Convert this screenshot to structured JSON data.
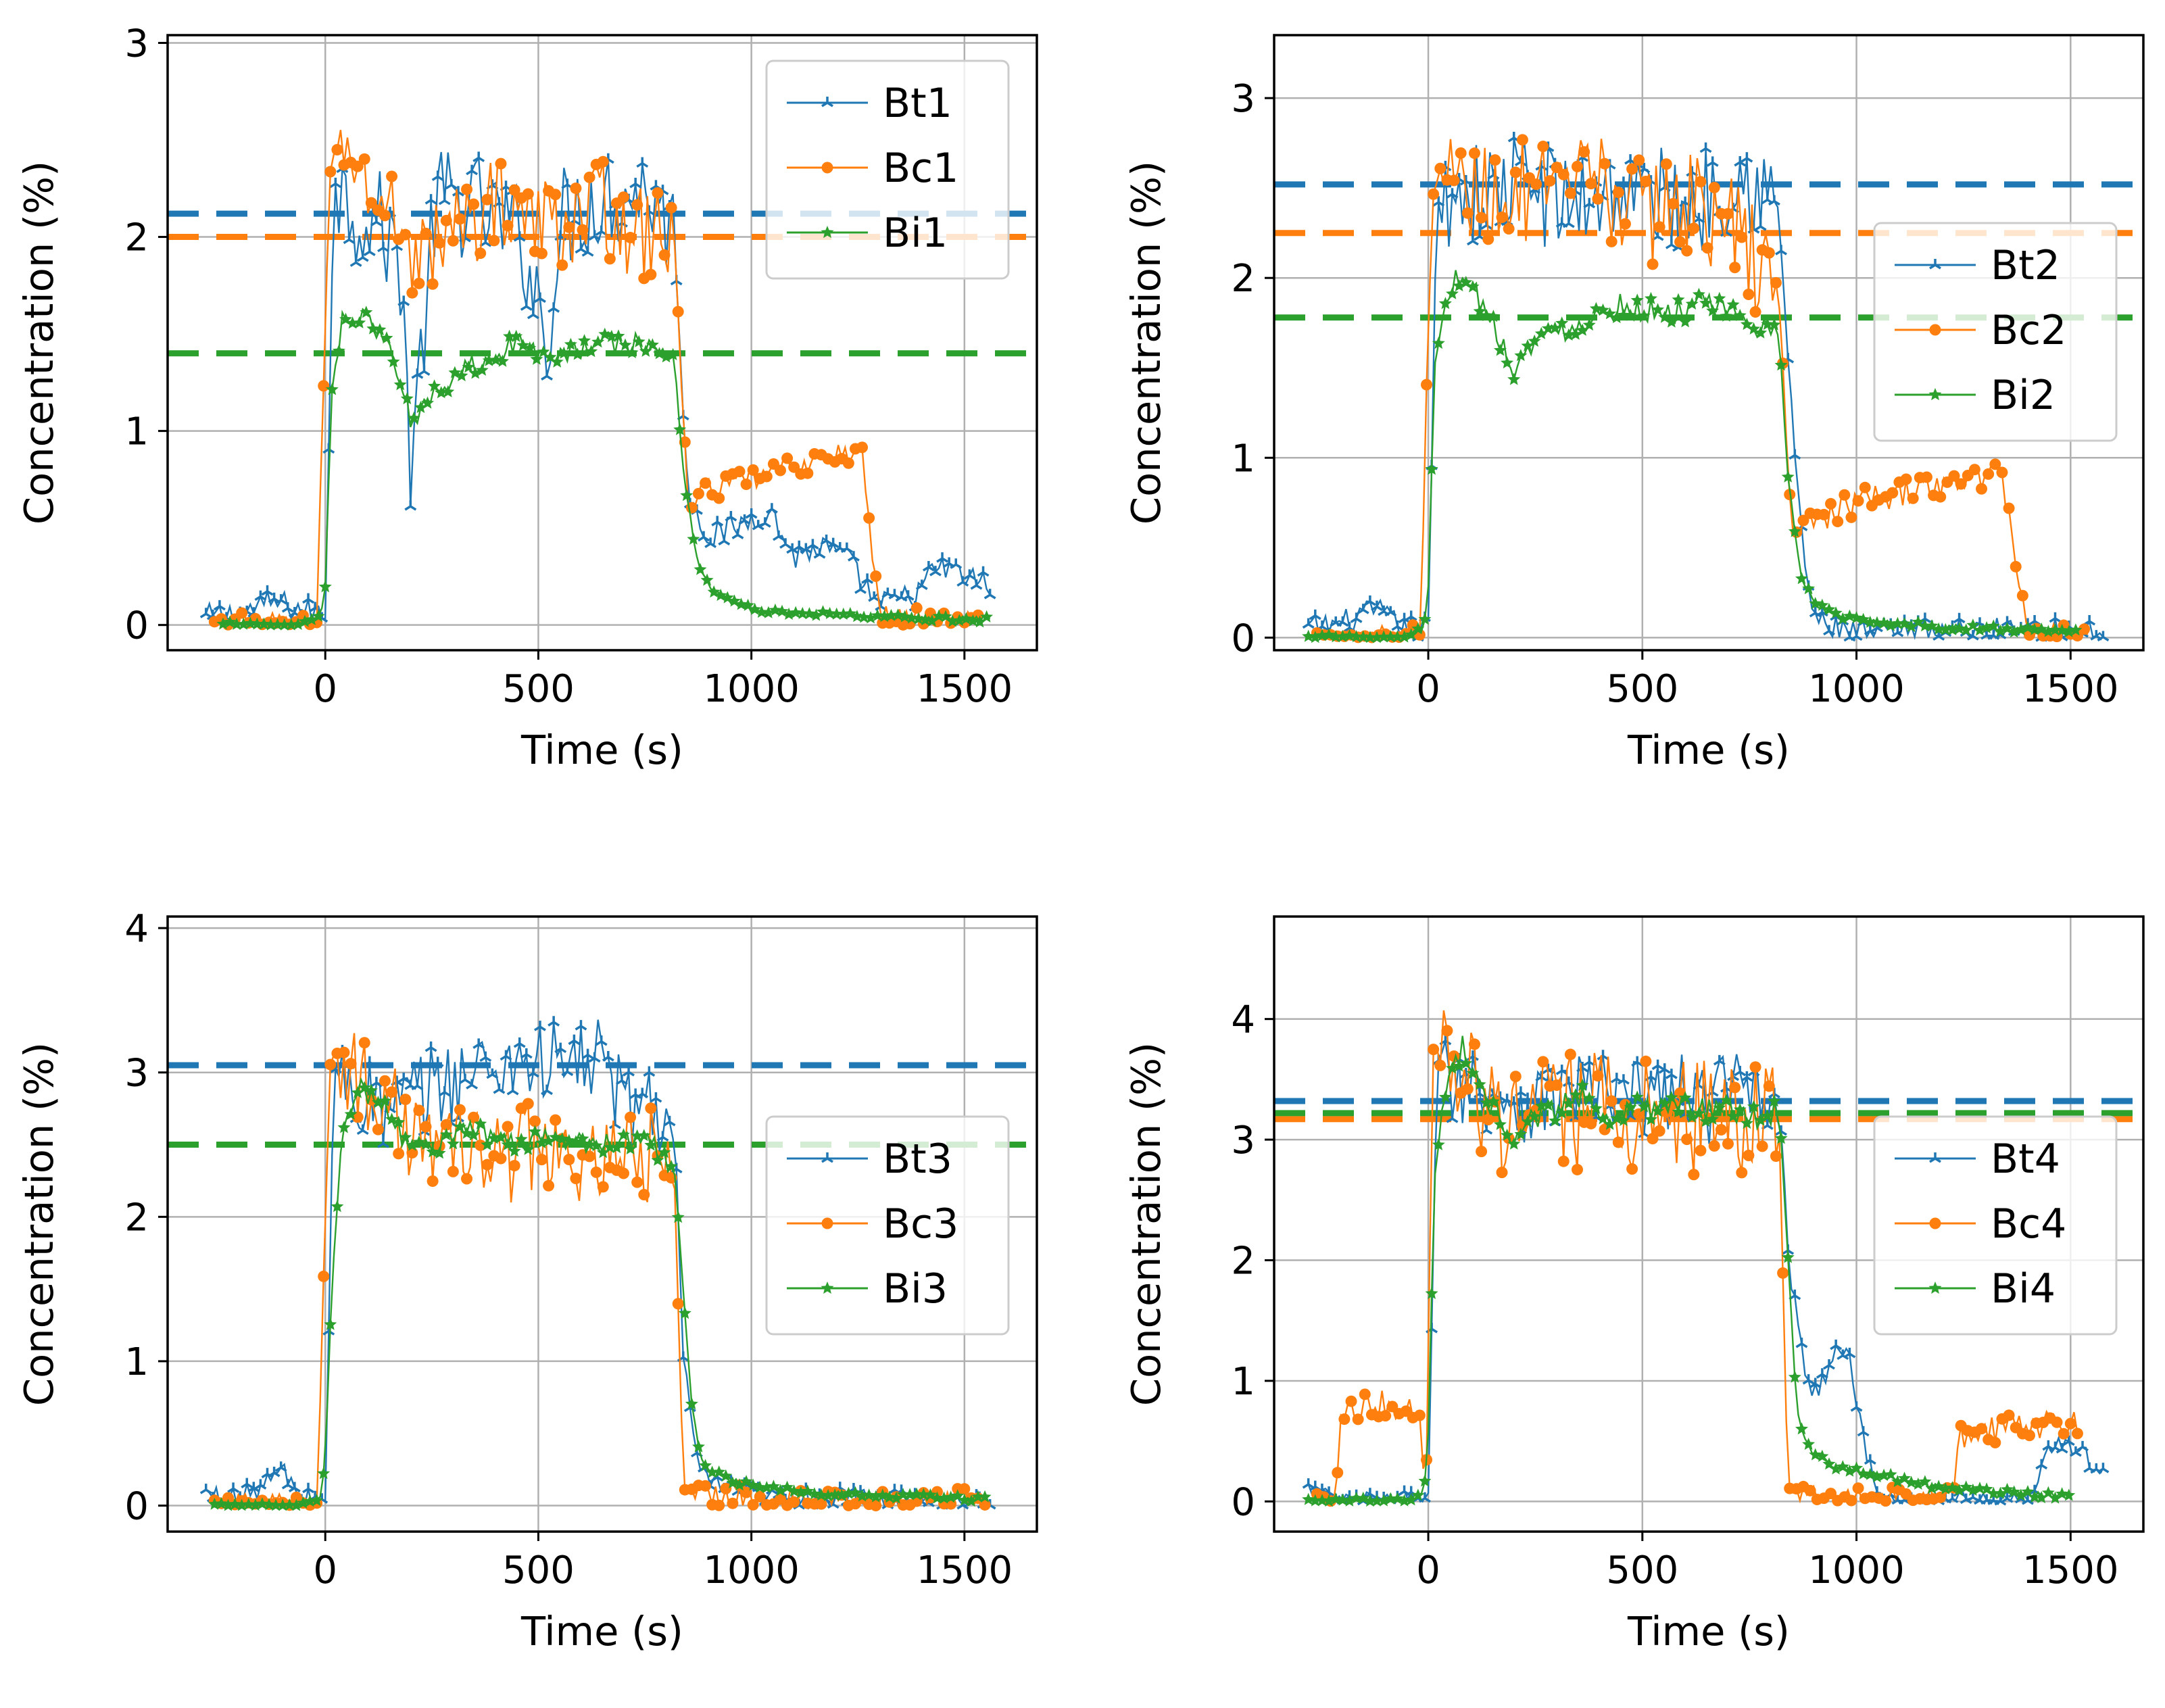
{
  "colors": {
    "Bt": "#1f77b4",
    "Bc": "#ff7f0e",
    "Bi": "#2ca02c"
  },
  "chart_data": [
    {
      "type": "line",
      "xlabel": "Time (s)",
      "ylabel": "Concentration (%)",
      "xlim": [
        -370,
        1670
      ],
      "ylim": [
        -0.13,
        3.04
      ],
      "xticks": [
        0,
        500,
        1000,
        1500
      ],
      "xtick_labels": [
        "0",
        "500",
        "1000",
        "1500"
      ],
      "yticks": [
        0,
        1,
        2,
        3
      ],
      "ytick_labels": [
        "0",
        "1",
        "2",
        "3"
      ],
      "grid": true,
      "legend_position": "top-right",
      "series": [
        {
          "name": "Bt1",
          "color": "#1f77b4",
          "marker": "tri",
          "noise": 0.28,
          "reference": 2.12,
          "x": [
            -280,
            -200,
            -120,
            -60,
            0,
            20,
            60,
            120,
            180,
            200,
            260,
            360,
            460,
            520,
            560,
            640,
            760,
            820,
            850,
            900,
            960,
            1000,
            1040,
            1100,
            1160,
            1220,
            1300,
            1380,
            1440,
            1500,
            1560
          ],
          "y": [
            0.04,
            0.06,
            0.12,
            0.08,
            0.05,
            2.3,
            2.15,
            2.1,
            1.85,
            0.8,
            2.2,
            2.15,
            2.0,
            1.5,
            2.1,
            2.2,
            2.25,
            2.0,
            0.7,
            0.45,
            0.5,
            0.55,
            0.6,
            0.35,
            0.4,
            0.35,
            0.1,
            0.15,
            0.3,
            0.25,
            0.2
          ]
        },
        {
          "name": "Bc1",
          "color": "#ff7f0e",
          "marker": "circle",
          "noise": 0.25,
          "reference": 2.0,
          "x": [
            -260,
            -200,
            -100,
            -20,
            10,
            40,
            100,
            160,
            220,
            260,
            340,
            420,
            500,
            580,
            660,
            740,
            800,
            820,
            850,
            900,
            950,
            1000,
            1040,
            1100,
            1160,
            1220,
            1260,
            1300,
            1400,
            1500,
            1540
          ],
          "y": [
            0.0,
            0.0,
            0.0,
            0.0,
            2.3,
            2.5,
            2.25,
            2.1,
            1.9,
            1.95,
            2.1,
            2.2,
            2.05,
            2.1,
            2.15,
            2.0,
            2.05,
            1.9,
            0.65,
            0.7,
            0.72,
            0.75,
            0.78,
            0.82,
            0.85,
            0.88,
            0.9,
            0.05,
            0.03,
            0.02,
            0.02
          ]
        },
        {
          "name": "Bi1",
          "color": "#2ca02c",
          "marker": "star",
          "noise": 0.06,
          "reference": 1.4,
          "x": [
            -240,
            -180,
            -120,
            -60,
            -10,
            0,
            15,
            40,
            80,
            150,
            200,
            250,
            350,
            450,
            550,
            650,
            760,
            820,
            840,
            870,
            900,
            950,
            1000,
            1100,
            1200,
            1300,
            1400,
            1500,
            1560
          ],
          "y": [
            0.0,
            0.0,
            0.0,
            0.0,
            0.05,
            0.2,
            1.2,
            1.6,
            1.6,
            1.45,
            1.05,
            1.2,
            1.35,
            1.45,
            1.4,
            1.45,
            1.45,
            1.35,
            0.8,
            0.35,
            0.2,
            0.12,
            0.08,
            0.06,
            0.05,
            0.04,
            0.03,
            0.03,
            0.03
          ]
        }
      ]
    },
    {
      "type": "line",
      "xlabel": "Time (s)",
      "ylabel": "Concentration (%)",
      "xlim": [
        -360,
        1670
      ],
      "ylim": [
        -0.07,
        3.35
      ],
      "xticks": [
        0,
        500,
        1000,
        1500
      ],
      "xtick_labels": [
        "0",
        "500",
        "1000",
        "1500"
      ],
      "yticks": [
        0,
        1,
        2,
        3
      ],
      "ytick_labels": [
        "0",
        "1",
        "2",
        "3"
      ],
      "grid": true,
      "legend_position": "center-right",
      "series": [
        {
          "name": "Bt2",
          "color": "#1f77b4",
          "marker": "tri",
          "noise": 0.3,
          "reference": 2.52,
          "x": [
            -280,
            -200,
            -120,
            -60,
            0,
            20,
            60,
            140,
            220,
            320,
            420,
            520,
            620,
            720,
            780,
            820,
            850,
            880,
            900,
            950,
            1000,
            1100,
            1200,
            1300,
            1400,
            1500,
            1580
          ],
          "y": [
            0.05,
            0.08,
            0.15,
            0.05,
            0.05,
            2.4,
            2.5,
            2.45,
            2.55,
            2.4,
            2.5,
            2.45,
            2.4,
            2.6,
            2.5,
            2.3,
            1.2,
            0.4,
            0.1,
            0.05,
            0.02,
            0.02,
            0.05,
            0.02,
            0.08,
            0.02,
            0.02
          ]
        },
        {
          "name": "Bc2",
          "color": "#ff7f0e",
          "marker": "circle",
          "noise": 0.3,
          "reference": 2.25,
          "x": [
            -260,
            -200,
            -120,
            -20,
            10,
            40,
            100,
            200,
            300,
            400,
            500,
            600,
            700,
            800,
            820,
            850,
            900,
            950,
            1000,
            1100,
            1200,
            1250,
            1300,
            1340,
            1400,
            1450,
            1540
          ],
          "y": [
            0.0,
            0.0,
            0.0,
            0.0,
            2.5,
            2.6,
            2.45,
            2.5,
            2.4,
            2.55,
            2.35,
            2.45,
            2.3,
            2.0,
            1.8,
            0.6,
            0.65,
            0.7,
            0.75,
            0.8,
            0.85,
            0.88,
            0.9,
            0.92,
            0.02,
            0.02,
            0.02
          ]
        },
        {
          "name": "Bi2",
          "color": "#2ca02c",
          "marker": "star",
          "noise": 0.07,
          "reference": 1.78,
          "x": [
            -280,
            -200,
            -120,
            -60,
            -10,
            0,
            15,
            40,
            80,
            150,
            200,
            250,
            350,
            450,
            550,
            650,
            760,
            820,
            840,
            870,
            900,
            950,
            1000,
            1100,
            1200,
            1300,
            1400,
            1520
          ],
          "y": [
            0.0,
            0.0,
            0.0,
            0.0,
            0.05,
            0.3,
            1.5,
            1.9,
            2.05,
            1.75,
            1.5,
            1.65,
            1.75,
            1.85,
            1.8,
            1.85,
            1.75,
            1.65,
            0.9,
            0.35,
            0.2,
            0.12,
            0.1,
            0.08,
            0.06,
            0.05,
            0.04,
            0.03
          ]
        }
      ]
    },
    {
      "type": "line",
      "xlabel": "Time (s)",
      "ylabel": "Concentration (%)",
      "xlim": [
        -370,
        1670
      ],
      "ylim": [
        -0.18,
        4.08
      ],
      "xticks": [
        0,
        500,
        1000,
        1500
      ],
      "xtick_labels": [
        "0",
        "500",
        "1000",
        "1500"
      ],
      "yticks": [
        0,
        1,
        2,
        3,
        4
      ],
      "ytick_labels": [
        "0",
        "1",
        "2",
        "3",
        "4"
      ],
      "grid": true,
      "legend_position": "center-right",
      "series": [
        {
          "name": "Bt3",
          "color": "#1f77b4",
          "marker": "tri",
          "noise": 0.3,
          "reference": 3.05,
          "x": [
            -280,
            -200,
            -140,
            -100,
            -60,
            0,
            20,
            60,
            150,
            250,
            350,
            450,
            550,
            650,
            700,
            760,
            820,
            840,
            880,
            950,
            1000,
            1100,
            1200,
            1300,
            1400,
            1500,
            1560
          ],
          "y": [
            0.08,
            0.05,
            0.15,
            0.25,
            0.05,
            0.05,
            3.0,
            2.9,
            2.7,
            2.9,
            3.0,
            3.1,
            3.05,
            3.1,
            2.75,
            2.8,
            2.6,
            1.0,
            0.2,
            0.1,
            0.08,
            0.06,
            0.05,
            0.05,
            0.04,
            0.04,
            0.04
          ]
        },
        {
          "name": "Bc3",
          "color": "#ff7f0e",
          "marker": "circle",
          "noise": 0.35,
          "reference": 2.5,
          "x": [
            -260,
            -200,
            -100,
            -20,
            10,
            40,
            100,
            200,
            300,
            400,
            500,
            600,
            700,
            800,
            820,
            840,
            880,
            950,
            1000,
            1100,
            1200,
            1300,
            1400,
            1500,
            1550
          ],
          "y": [
            0.0,
            0.0,
            0.0,
            0.0,
            3.0,
            3.1,
            2.9,
            2.6,
            2.45,
            2.4,
            2.5,
            2.3,
            2.35,
            2.5,
            2.2,
            0.1,
            0.08,
            0.06,
            0.05,
            0.04,
            0.03,
            0.03,
            0.03,
            0.03,
            0.03
          ]
        },
        {
          "name": "Bi3",
          "color": "#2ca02c",
          "marker": "star",
          "noise": 0.08,
          "reference": 2.5,
          "x": [
            -260,
            -200,
            -120,
            -60,
            -10,
            0,
            15,
            40,
            80,
            150,
            200,
            250,
            350,
            450,
            550,
            650,
            760,
            820,
            840,
            860,
            880,
            900,
            950,
            1000,
            1100,
            1200,
            1300,
            1400,
            1500,
            1560
          ],
          "y": [
            0.0,
            0.0,
            0.0,
            0.0,
            0.05,
            0.35,
            1.5,
            2.6,
            2.9,
            2.75,
            2.45,
            2.5,
            2.6,
            2.5,
            2.55,
            2.5,
            2.55,
            2.3,
            1.5,
            0.7,
            0.35,
            0.25,
            0.18,
            0.14,
            0.1,
            0.08,
            0.07,
            0.06,
            0.05,
            0.05
          ]
        }
      ]
    },
    {
      "type": "line",
      "xlabel": "Time (s)",
      "ylabel": "Concentration (%)",
      "xlim": [
        -360,
        1670
      ],
      "ylim": [
        -0.25,
        4.85
      ],
      "xticks": [
        0,
        500,
        1000,
        1500
      ],
      "xtick_labels": [
        "0",
        "500",
        "1000",
        "1500"
      ],
      "yticks": [
        0,
        1,
        2,
        3,
        4
      ],
      "ytick_labels": [
        "0",
        "1",
        "2",
        "3",
        "4"
      ],
      "grid": true,
      "legend_position": "center-right",
      "series": [
        {
          "name": "Bt4",
          "color": "#1f77b4",
          "marker": "tri",
          "noise": 0.35,
          "reference": 3.32,
          "x": [
            -280,
            -220,
            -160,
            -100,
            -40,
            0,
            20,
            60,
            150,
            250,
            350,
            450,
            550,
            650,
            750,
            820,
            840,
            860,
            880,
            900,
            920,
            950,
            980,
            1000,
            1050,
            1100,
            1200,
            1300,
            1400,
            1450,
            1500,
            1540,
            1580
          ],
          "y": [
            0.1,
            0.0,
            0.0,
            0.0,
            0.0,
            0.0,
            3.6,
            3.5,
            3.4,
            3.3,
            3.45,
            3.3,
            3.4,
            3.3,
            3.5,
            3.4,
            2.0,
            1.6,
            1.1,
            0.9,
            1.0,
            1.2,
            1.3,
            0.8,
            0.0,
            0.0,
            0.0,
            0.0,
            0.0,
            0.5,
            0.45,
            0.35,
            0.3
          ]
        },
        {
          "name": "Bc4",
          "color": "#ff7f0e",
          "marker": "circle",
          "noise": 0.5,
          "reference": 3.17,
          "x": [
            -260,
            -220,
            -200,
            -120,
            -20,
            -5,
            10,
            40,
            100,
            200,
            300,
            400,
            500,
            600,
            700,
            800,
            820,
            840,
            900,
            1000,
            1100,
            1200,
            1230,
            1240,
            1300,
            1400,
            1500,
            1520
          ],
          "y": [
            0.0,
            0.0,
            0.8,
            0.8,
            0.8,
            0.0,
            3.8,
            3.7,
            3.4,
            3.1,
            3.2,
            3.3,
            3.2,
            3.15,
            3.2,
            3.25,
            3.1,
            0.0,
            0.0,
            0.0,
            0.0,
            0.0,
            0.0,
            0.55,
            0.58,
            0.62,
            0.65,
            0.66
          ]
        },
        {
          "name": "Bi4",
          "color": "#2ca02c",
          "marker": "star",
          "noise": 0.12,
          "reference": 3.22,
          "x": [
            -280,
            -200,
            -120,
            -60,
            -10,
            0,
            15,
            40,
            80,
            150,
            200,
            250,
            350,
            450,
            550,
            650,
            760,
            820,
            840,
            860,
            880,
            900,
            950,
            1000,
            1100,
            1200,
            1300,
            1400,
            1500
          ],
          "y": [
            0.0,
            0.0,
            0.0,
            0.0,
            0.05,
            0.6,
            2.7,
            3.4,
            3.75,
            3.3,
            2.95,
            3.2,
            3.35,
            3.2,
            3.3,
            3.25,
            3.2,
            3.25,
            2.0,
            0.8,
            0.5,
            0.4,
            0.3,
            0.25,
            0.18,
            0.12,
            0.08,
            0.06,
            0.05
          ]
        }
      ]
    }
  ]
}
